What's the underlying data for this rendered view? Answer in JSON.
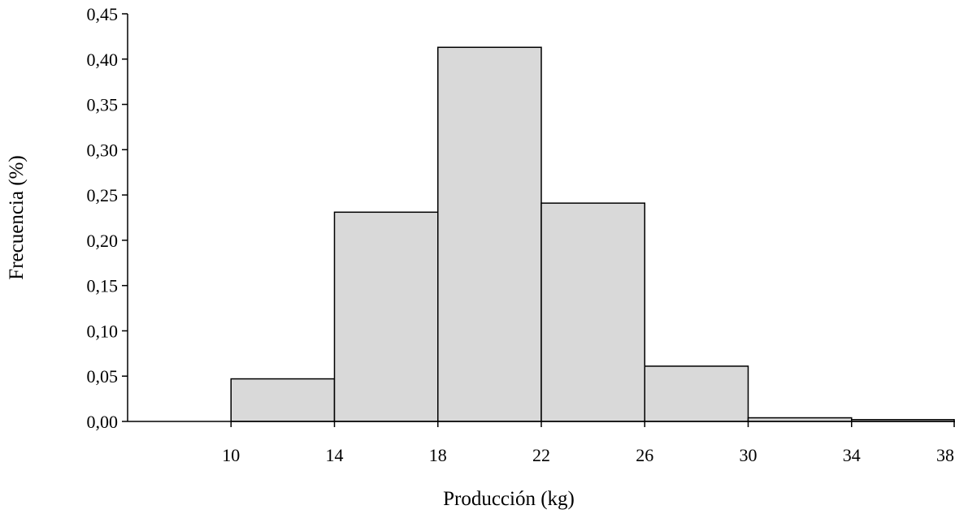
{
  "chart_data": {
    "type": "bar",
    "subtype": "histogram",
    "title": "",
    "xlabel": "Producción (kg)",
    "ylabel": "Frecuencia (%)",
    "bins": [
      {
        "start": 10,
        "end": 14,
        "value": 0.047
      },
      {
        "start": 14,
        "end": 18,
        "value": 0.231
      },
      {
        "start": 18,
        "end": 22,
        "value": 0.413
      },
      {
        "start": 22,
        "end": 26,
        "value": 0.241
      },
      {
        "start": 26,
        "end": 30,
        "value": 0.061
      },
      {
        "start": 30,
        "end": 34,
        "value": 0.004
      },
      {
        "start": 34,
        "end": 38,
        "value": 0.002
      }
    ],
    "xlim": [
      6,
      38
    ],
    "ylim": [
      0,
      0.45
    ],
    "x_ticks": [
      10,
      14,
      18,
      22,
      26,
      30,
      34,
      38
    ],
    "x_tick_labels": [
      "10",
      "14",
      "18",
      "22",
      "26",
      "30",
      "34",
      "38"
    ],
    "y_ticks": [
      0,
      0.05,
      0.1,
      0.15,
      0.2,
      0.25,
      0.3,
      0.35,
      0.4,
      0.45
    ],
    "y_tick_labels": [
      "0,00",
      "0,05",
      "0,10",
      "0,15",
      "0,20",
      "0,25",
      "0,30",
      "0,35",
      "0,40",
      "0,45"
    ],
    "grid": false,
    "legend": "none",
    "colors": {
      "bar_fill": "#d9d9d9",
      "bar_stroke": "#000000"
    }
  }
}
